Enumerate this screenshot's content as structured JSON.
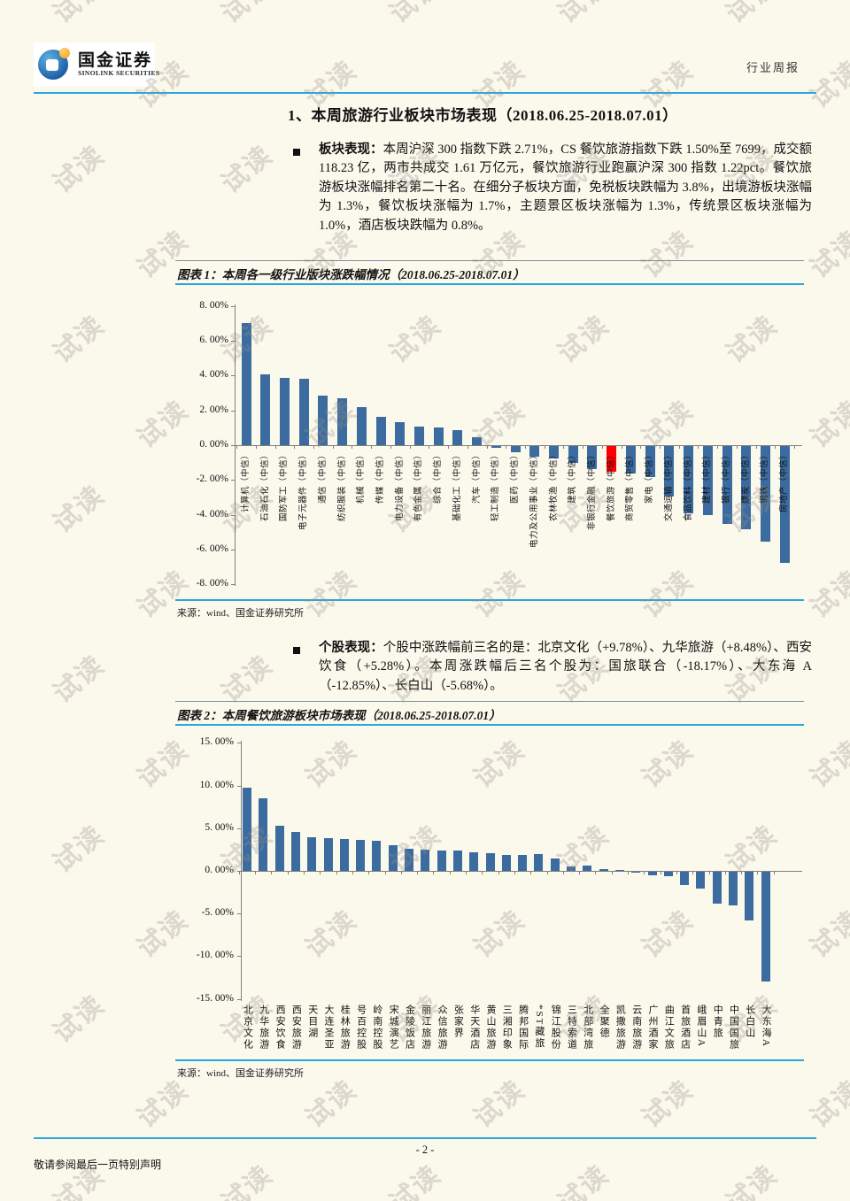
{
  "header": {
    "brand_cn": "国金证券",
    "brand_en": "SINOLINK SECURITIES",
    "report_type": "行业周报"
  },
  "title": "1、本周旅游行业板块市场表现（2018.06.25-2018.07.01）",
  "bullets": [
    {
      "lead": "板块表现：",
      "text": "本周沪深 300 指数下跌 2.71%，CS 餐饮旅游指数下跌 1.50%至 7699，成交额 118.23 亿，两市共成交 1.61 万亿元，餐饮旅游行业跑赢沪深 300 指数 1.22pct。餐饮旅游板块涨幅排名第二十名。在细分子板块方面，免税板块跌幅为 3.8%，出境游板块涨幅为 1.3%，餐饮板块涨幅为 1.7%，主题景区板块涨幅为 1.3%，传统景区板块涨幅为 1.0%，酒店板块跌幅为 0.8%。"
    },
    {
      "lead": "个股表现：",
      "text": "个股中涨跌幅前三名的是：北京文化（+9.78%）、九华旅游（+8.48%）、西安饮食（+5.28%）。本周涨跌幅后三名个股为：国旅联合（-18.17%）、大东海 A（-12.85%）、长白山（-5.68%）。"
    }
  ],
  "figures": [
    {
      "caption": "图表 1：本周各一级行业版块涨跌幅情况（2018.06.25-2018.07.01）",
      "source": "来源：wind、国金证券研究所"
    },
    {
      "caption": "图表 2：本周餐饮旅游板块市场表现（2018.06.25-2018.07.01）",
      "source": "来源：wind、国金证券研究所"
    }
  ],
  "footer": {
    "page_number": "- 2 -",
    "disclaimer": "敬请参阅最后一页特别声明"
  },
  "page": {
    "watermark_text": "试读"
  },
  "colors": {
    "accent_blue": "#2AA7DF",
    "bar_blue": "#3C6C9F",
    "highlight_red": "#FF0000",
    "page_bg": "#FBF8EC"
  },
  "chart_data": [
    {
      "type": "bar",
      "title": "本周各一级行业版块涨跌幅情况",
      "categories": [
        "计算机（中信）",
        "石油石化（中信）",
        "国防军工（中信）",
        "电子元器件（中信）",
        "通信（中信）",
        "纺织服装（中信）",
        "机械（中信）",
        "传媒（中信）",
        "电力设备（中信）",
        "有色金属（中信）",
        "综合（中信）",
        "基础化工（中信）",
        "汽车（中信）",
        "轻工制造（中信）",
        "医药（中信）",
        "电力及公用事业（中信）",
        "农林牧渔（中信）",
        "建筑（中信）",
        "非银行金融（中信）",
        "餐饮旅游（中信）",
        "商贸零售（中信）",
        "家电（中信）",
        "交通运输（中信）",
        "食品饮料（中信）",
        "建材（中信）",
        "银行（中信）",
        "煤炭（中信）",
        "钢铁（中信）",
        "房地产（中信）"
      ],
      "values": [
        7.0,
        4.05,
        3.85,
        3.8,
        2.85,
        2.7,
        2.2,
        1.65,
        1.3,
        1.05,
        1.0,
        0.85,
        0.45,
        -0.1,
        -0.35,
        -0.6,
        -0.7,
        -0.95,
        -1.3,
        -1.5,
        -1.6,
        -1.8,
        -2.9,
        -3.85,
        -3.95,
        -4.5,
        -4.8,
        -5.5,
        -6.7
      ],
      "xlabel": "",
      "ylabel": "",
      "ylim": [
        -8,
        8
      ],
      "grid": false,
      "y_ticks": [
        "8. 00%",
        "6. 00%",
        "4. 00%",
        "2. 00%",
        "0. 00%",
        "-2. 00%",
        "-4. 00%",
        "-6. 00%",
        "-8. 00%"
      ],
      "y_tick_values": [
        8,
        6,
        4,
        2,
        0,
        -2,
        -4,
        -6,
        -8
      ],
      "bar_color": "#3C6C9F",
      "highlight_index": 19,
      "highlight_color": "#FF0000"
    },
    {
      "type": "bar",
      "title": "本周餐饮旅游板块市场表现",
      "categories": [
        "北京文化",
        "九华旅游",
        "西安饮食",
        "西安旅游",
        "天目湖",
        "大连圣亚",
        "桂林旅游",
        "号百控股",
        "岭南控股",
        "宋城演艺",
        "金陵饭店",
        "丽江旅游",
        "众信旅游",
        "张家界",
        "华天酒店",
        "黄山旅游",
        "三湘印象",
        "腾邦国际",
        "*ST藏旅",
        "锦江股份",
        "三特索道",
        "北部湾旅",
        "全聚德",
        "凯撒旅游",
        "云南旅游",
        "广州酒家",
        "曲江文旅",
        "首旅酒店",
        "峨眉山A",
        "中青旅",
        "中国国旅",
        "长白山",
        "大东海A"
      ],
      "values": [
        9.78,
        8.48,
        5.28,
        4.6,
        3.95,
        3.85,
        3.7,
        3.65,
        3.55,
        3.05,
        2.6,
        2.45,
        2.4,
        2.35,
        2.2,
        2.05,
        1.9,
        1.85,
        1.95,
        1.5,
        0.55,
        0.6,
        0.2,
        0.05,
        -0.1,
        -0.45,
        -0.55,
        -1.6,
        -1.95,
        -3.75,
        -3.9,
        -5.68,
        -12.85
      ],
      "xlabel": "",
      "ylabel": "",
      "ylim": [
        -15,
        15
      ],
      "grid": false,
      "y_ticks": [
        "15. 00%",
        "10. 00%",
        "5. 00%",
        "0. 00%",
        "-5. 00%",
        "-10. 00%",
        "-15. 00%"
      ],
      "y_tick_values": [
        15,
        10,
        5,
        0,
        -5,
        -10,
        -15
      ],
      "bar_color": "#3C6C9F",
      "highlight_index": -1,
      "highlight_color": "#FF0000"
    }
  ]
}
